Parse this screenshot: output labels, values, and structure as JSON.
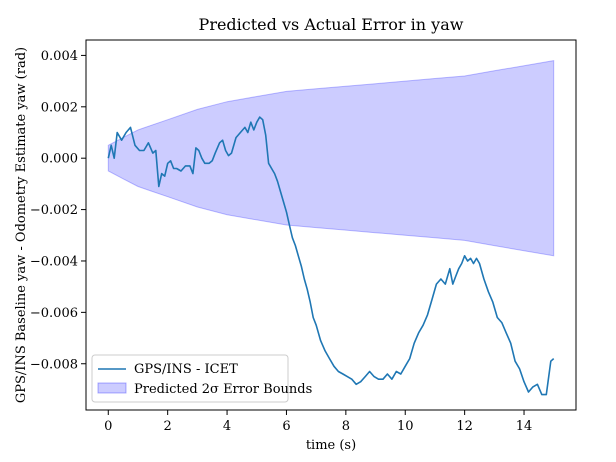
{
  "chart_data": {
    "type": "line",
    "title": "Predicted vs Actual Error in yaw",
    "xlabel": "time (s)",
    "ylabel": "GPS/INS Baseline yaw - Odometry Estimate yaw (rad)",
    "xlim": [
      -0.75,
      15.75
    ],
    "ylim": [
      -0.0098,
      0.0046
    ],
    "xticks": [
      0,
      2,
      4,
      6,
      8,
      10,
      12,
      14
    ],
    "xtick_labels": [
      "0",
      "2",
      "4",
      "6",
      "8",
      "10",
      "12",
      "14"
    ],
    "yticks": [
      0.004,
      0.002,
      0.0,
      -0.002,
      -0.004,
      -0.006,
      -0.008
    ],
    "ytick_labels": [
      "0.004",
      "0.002",
      "0.000",
      "−0.002",
      "−0.004",
      "−0.006",
      "−0.008"
    ],
    "grid": false,
    "legend_position": "lower-left",
    "series": [
      {
        "name": "GPS/INS - ICET",
        "kind": "line",
        "color": "#1f77b4",
        "x": [
          0.0,
          0.1,
          0.2,
          0.3,
          0.45,
          0.6,
          0.75,
          0.9,
          1.05,
          1.2,
          1.35,
          1.5,
          1.6,
          1.7,
          1.8,
          1.9,
          2.0,
          2.1,
          2.2,
          2.3,
          2.45,
          2.6,
          2.75,
          2.85,
          2.95,
          3.05,
          3.15,
          3.25,
          3.4,
          3.5,
          3.6,
          3.75,
          3.85,
          3.95,
          4.05,
          4.15,
          4.3,
          4.45,
          4.6,
          4.7,
          4.8,
          4.9,
          5.0,
          5.1,
          5.2,
          5.3,
          5.4,
          5.5,
          5.6,
          5.7,
          5.8,
          5.9,
          6.0,
          6.1,
          6.2,
          6.3,
          6.4,
          6.5,
          6.6,
          6.7,
          6.8,
          6.9,
          7.0,
          7.15,
          7.3,
          7.45,
          7.6,
          7.75,
          7.9,
          8.05,
          8.2,
          8.35,
          8.5,
          8.65,
          8.8,
          8.95,
          9.1,
          9.25,
          9.4,
          9.55,
          9.7,
          9.85,
          10.0,
          10.15,
          10.3,
          10.45,
          10.6,
          10.75,
          10.9,
          11.05,
          11.2,
          11.35,
          11.5,
          11.6,
          11.7,
          11.8,
          11.9,
          12.0,
          12.1,
          12.2,
          12.3,
          12.4,
          12.5,
          12.65,
          12.8,
          12.95,
          13.1,
          13.25,
          13.4,
          13.55,
          13.7,
          13.85,
          14.0,
          14.15,
          14.3,
          14.45,
          14.6,
          14.75,
          14.9,
          15.0
        ],
        "y": [
          0.0,
          0.0005,
          0.0,
          0.001,
          0.0007,
          0.001,
          0.0012,
          0.0005,
          0.0003,
          0.0003,
          0.0006,
          0.0002,
          0.0003,
          -0.0011,
          -0.0006,
          -0.0007,
          -0.0002,
          -0.0001,
          -0.0004,
          -0.0004,
          -0.0005,
          -0.0003,
          -0.0003,
          -0.0006,
          0.0004,
          0.0003,
          0.0,
          -0.0002,
          -0.0002,
          -0.0001,
          0.0002,
          0.0006,
          0.0007,
          0.0003,
          0.0001,
          0.0002,
          0.0008,
          0.001,
          0.0012,
          0.001,
          0.0014,
          0.0011,
          0.0014,
          0.0016,
          0.0015,
          0.0009,
          -0.0002,
          -0.0004,
          -0.0006,
          -0.0009,
          -0.0013,
          -0.0017,
          -0.0021,
          -0.0026,
          -0.0031,
          -0.0034,
          -0.0038,
          -0.0042,
          -0.0047,
          -0.0051,
          -0.0056,
          -0.0062,
          -0.0065,
          -0.0071,
          -0.0075,
          -0.0078,
          -0.0081,
          -0.0083,
          -0.0084,
          -0.0085,
          -0.0086,
          -0.0088,
          -0.0087,
          -0.0085,
          -0.0083,
          -0.0085,
          -0.0086,
          -0.0086,
          -0.0084,
          -0.0086,
          -0.0083,
          -0.0084,
          -0.0081,
          -0.0078,
          -0.0072,
          -0.0068,
          -0.0065,
          -0.0061,
          -0.0055,
          -0.0049,
          -0.0047,
          -0.0049,
          -0.0043,
          -0.0049,
          -0.0046,
          -0.0043,
          -0.0041,
          -0.0038,
          -0.004,
          -0.0039,
          -0.0041,
          -0.0039,
          -0.0041,
          -0.0047,
          -0.0052,
          -0.0056,
          -0.0062,
          -0.0064,
          -0.0068,
          -0.0072,
          -0.0079,
          -0.0082,
          -0.0087,
          -0.0091,
          -0.0089,
          -0.0088,
          -0.0092,
          -0.0092,
          -0.0079,
          -0.0078
        ]
      },
      {
        "name": "Predicted 2σ Error Bounds",
        "kind": "band",
        "color": "#0000ff",
        "fill_opacity": 0.2,
        "x": [
          0,
          0.5,
          1,
          1.5,
          2,
          3,
          4,
          5,
          6,
          7,
          8,
          9,
          10,
          11,
          12,
          13,
          14,
          15
        ],
        "upper": [
          0.0005,
          0.0008,
          0.0011,
          0.0013,
          0.0015,
          0.0019,
          0.0022,
          0.0024,
          0.0026,
          0.0027,
          0.0028,
          0.0029,
          0.003,
          0.0031,
          0.0032,
          0.0034,
          0.0036,
          0.0038
        ],
        "lower": [
          -0.0005,
          -0.0008,
          -0.0011,
          -0.0013,
          -0.0015,
          -0.0019,
          -0.0022,
          -0.0024,
          -0.0026,
          -0.0027,
          -0.0028,
          -0.0029,
          -0.003,
          -0.0031,
          -0.0032,
          -0.0034,
          -0.0036,
          -0.0038
        ]
      }
    ]
  }
}
